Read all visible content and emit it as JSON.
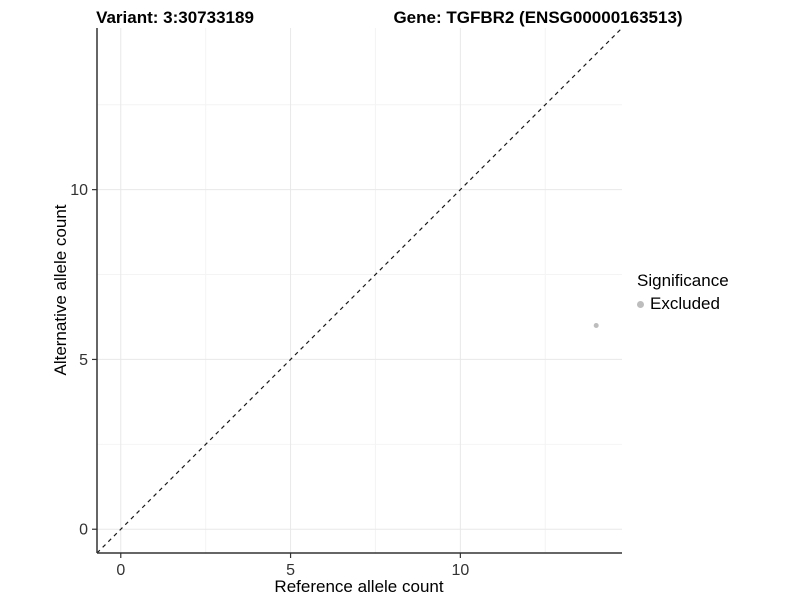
{
  "header": {
    "variant_title": "Variant: 3:30733189",
    "gene_title": "Gene: TGFBR2 (ENSG00000163513)"
  },
  "chart_data": {
    "type": "scatter",
    "title_left": "Variant: 3:30733189",
    "title_right": "Gene: TGFBR2 (ENSG00000163513)",
    "xlabel": "Reference allele count",
    "ylabel": "Alternative allele count",
    "xlim": [
      -0.7,
      14.76
    ],
    "ylim": [
      -0.7,
      14.76
    ],
    "x_ticks": [
      0,
      5,
      10
    ],
    "y_ticks": [
      0,
      5,
      10
    ],
    "x_minor_ticks": [
      2.5,
      7.5,
      12.5
    ],
    "y_minor_ticks": [
      2.5,
      7.5,
      12.5
    ],
    "grid": "on",
    "reference_line": {
      "type": "identity-diagonal",
      "slope": 1,
      "intercept": 0,
      "style": "dashed",
      "color": "#1a1a1a"
    },
    "series": [
      {
        "name": "Excluded",
        "color": "#bdbdbd",
        "points": [
          {
            "x": 14,
            "y": 6
          }
        ]
      }
    ],
    "legend_position": "right",
    "colors": {
      "grid_major": "#e8e8e8",
      "grid_minor": "#f4f4f4",
      "axis_line": "#333333",
      "tick_label": "#333333"
    }
  },
  "legend": {
    "title": "Significance",
    "items": [
      {
        "label": "Excluded",
        "color": "#bdbdbd",
        "icon": "point-icon"
      }
    ]
  }
}
